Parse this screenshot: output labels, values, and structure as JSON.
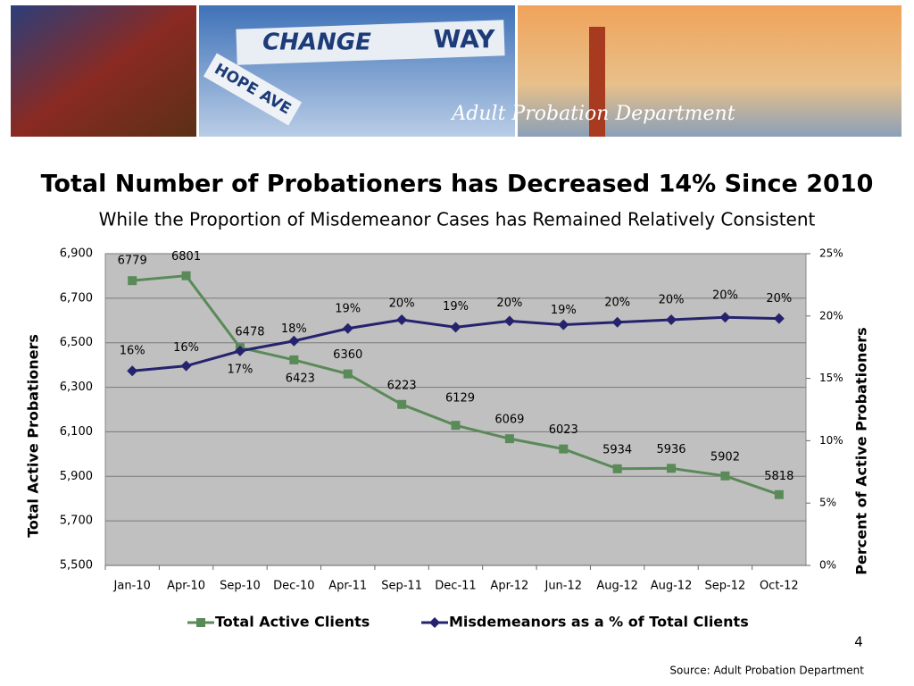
{
  "banner": {
    "sign_left": "CHANGE",
    "sign_right": "WAY",
    "street_sign": "HOPE AVE",
    "caption": "Adult Probation Department"
  },
  "chart_data": {
    "type": "line",
    "title": "Total Number of Probationers has Decreased 14% Since 2010",
    "subtitle": "While the Proportion of Misdemeanor Cases has Remained Relatively Consistent",
    "y_label": "Total Active Probationers",
    "y2_label": "Percent of Active Probationers",
    "categories": [
      "Jan-10",
      "Apr-10",
      "Sep-10",
      "Dec-10",
      "Apr-11",
      "Sep-11",
      "Dec-11",
      "Apr-12",
      "Jun-12",
      "Aug-12",
      "Aug-12",
      "Sep-12",
      "Oct-12"
    ],
    "series": [
      {
        "name": "Total Active Clients",
        "color": "#5a8a58",
        "marker": "square",
        "values": [
          6779,
          6801,
          6478,
          6423,
          6360,
          6223,
          6129,
          6069,
          6023,
          5934,
          5936,
          5902,
          5818
        ]
      },
      {
        "name": "Misdemeanors as a % of Total Clients",
        "color": "#25236e",
        "marker": "diamond",
        "axis": "y2",
        "values": [
          15.6,
          16.0,
          17.2,
          18.0,
          19.0,
          19.7,
          19.1,
          19.6,
          19.3,
          19.5,
          19.7,
          19.9,
          19.8
        ],
        "value_labels": [
          "16%",
          "16%",
          "17%",
          "18%",
          "19%",
          "20%",
          "19%",
          "20%",
          "19%",
          "20%",
          "20%",
          "20%",
          "20%"
        ]
      }
    ],
    "ylim": [
      5500,
      6900
    ],
    "yticks": [
      {
        "value": 5500,
        "label": "5,500"
      },
      {
        "value": 5700,
        "label": "5,700"
      },
      {
        "value": 5900,
        "label": "5,900"
      },
      {
        "value": 6100,
        "label": "6,100"
      },
      {
        "value": 6300,
        "label": "6,300"
      },
      {
        "value": 6500,
        "label": "6,500"
      },
      {
        "value": 6700,
        "label": "6,700"
      },
      {
        "value": 6900,
        "label": "6,900"
      }
    ],
    "y2lim": [
      0,
      25
    ],
    "y2ticks": [
      {
        "value": 0,
        "label": "0%"
      },
      {
        "value": 5,
        "label": "5%"
      },
      {
        "value": 10,
        "label": "10%"
      },
      {
        "value": 15,
        "label": "15%"
      },
      {
        "value": 20,
        "label": "20%"
      },
      {
        "value": 25,
        "label": "25%"
      }
    ],
    "grid": true,
    "legend": "bottom",
    "background": "#c0c0c0"
  },
  "page_number": "4",
  "source": "Source: Adult Probation Department"
}
